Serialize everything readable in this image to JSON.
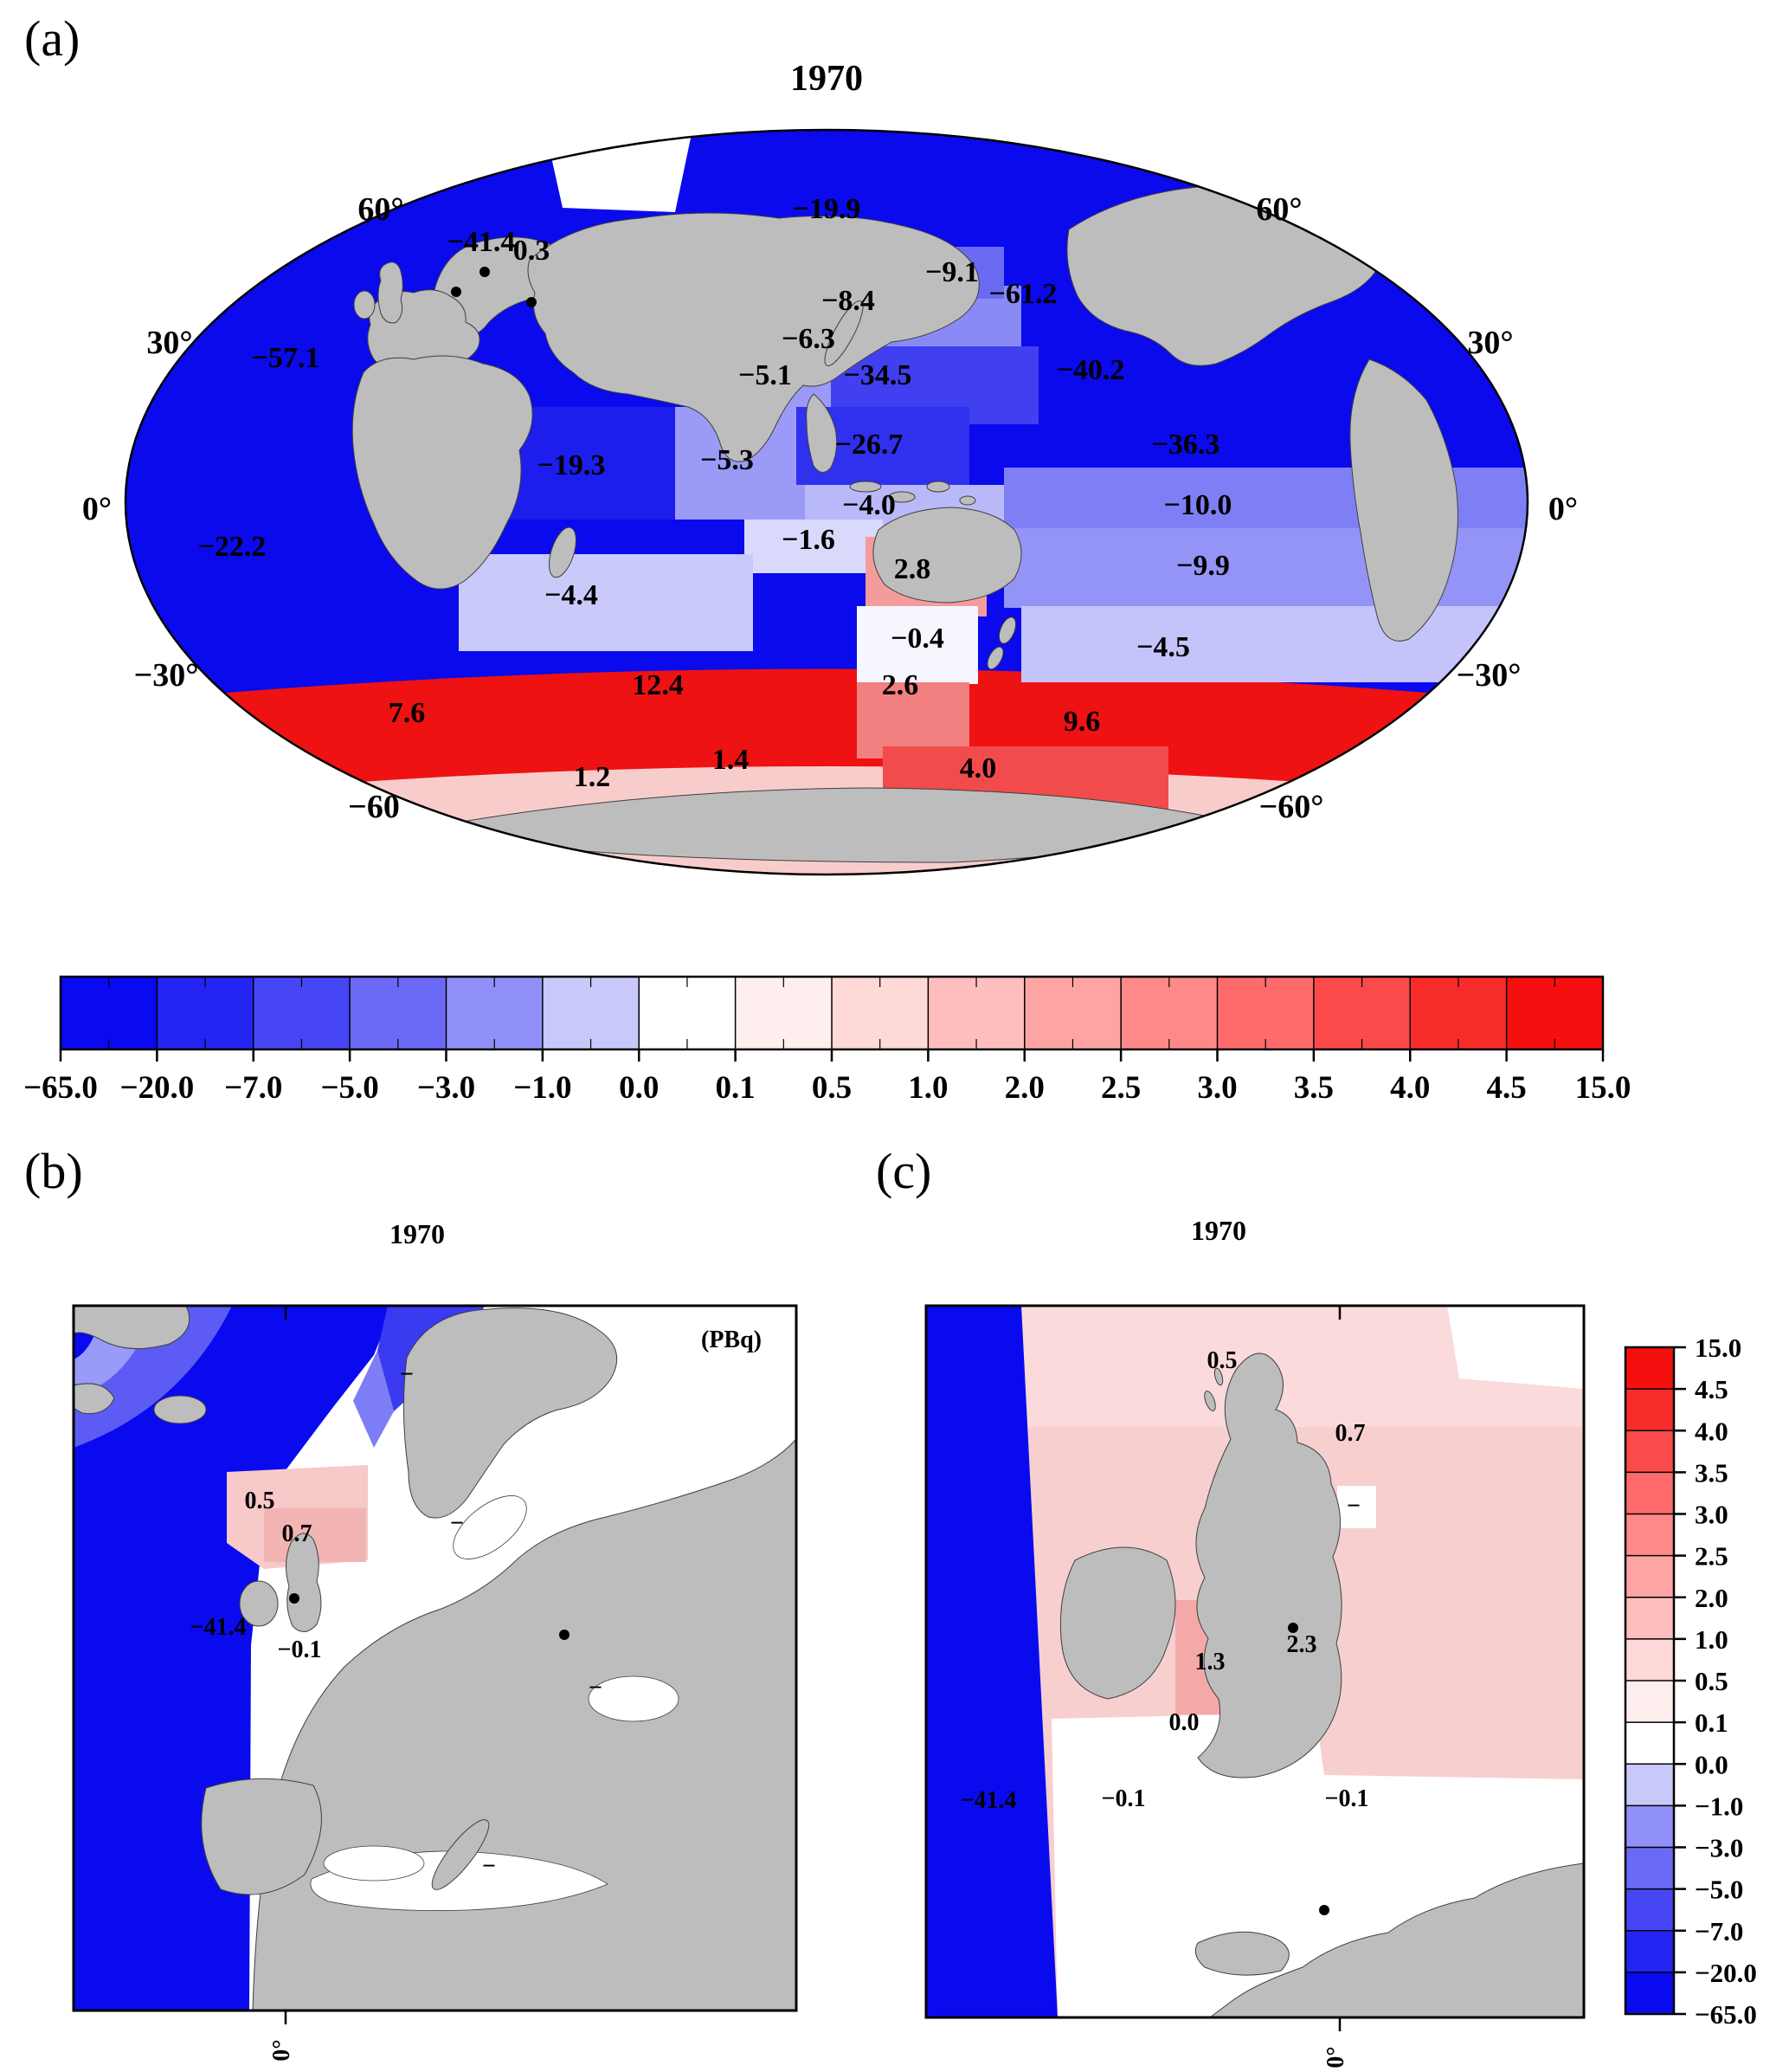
{
  "colors": {
    "land": "#bdbdbd",
    "deep_blue": "#0a0aec",
    "max_red": "#f50f0f",
    "scale": [
      "#0a0af0",
      "#2424f2",
      "#4646f4",
      "#6a6af6",
      "#9090f8",
      "#c8c8fb",
      "#ffffff",
      "#ffeeee",
      "#ffd8d8",
      "#ffbebe",
      "#ffa4a4",
      "#ff8989",
      "#ff6b6b",
      "#fb4a4a",
      "#f82b2b",
      "#f50f0f"
    ]
  },
  "panel_a": {
    "label": "(a)",
    "title": "1970",
    "lat_left": [
      "60°",
      "30°",
      "0°",
      "−30°",
      "−60"
    ],
    "lat_right": [
      "60°",
      "30°",
      "0°",
      "−30°",
      "−60°"
    ],
    "values": [
      "−19.9",
      "−41.4",
      "0.3",
      "−9.1",
      "−61.2",
      "−8.4",
      "−6.3",
      "−57.1",
      "−5.1",
      "−34.5",
      "−40.2",
      "−19.3",
      "−5.3",
      "−26.7",
      "−36.3",
      "−4.0",
      "−10.0",
      "−22.2",
      "−1.6",
      "2.8",
      "−9.9",
      "−4.4",
      "−0.4",
      "−4.5",
      "7.6",
      "12.4",
      "2.6",
      "9.6",
      "1.2",
      "1.4",
      "4.0"
    ]
  },
  "colorbar_horizontal": {
    "ticks": [
      "−65.0",
      "−20.0",
      "−7.0",
      "−5.0",
      "−3.0",
      "−1.0",
      "0.0",
      "0.1",
      "0.5",
      "1.0",
      "2.0",
      "2.5",
      "3.0",
      "3.5",
      "4.0",
      "4.5",
      "15.0"
    ]
  },
  "panel_b": {
    "label": "(b)",
    "title": "1970",
    "unit": "(PBq)",
    "values": [
      "−",
      "−",
      "0.5",
      "0.7",
      "−41.4",
      "−0.1",
      "−",
      "−"
    ],
    "x_tick": "0°"
  },
  "panel_c": {
    "label": "(c)",
    "title": "1970",
    "values": [
      "0.5",
      "0.7",
      "−",
      "2.3",
      "1.3",
      "0.0",
      "−0.1",
      "−41.4",
      "−0.1"
    ],
    "x_tick": "0°"
  },
  "colorbar_vertical": {
    "ticks": [
      "15.0",
      "4.5",
      "4.0",
      "3.5",
      "3.0",
      "2.5",
      "2.0",
      "1.0",
      "0.5",
      "0.1",
      "0.0",
      "−1.0",
      "−3.0",
      "−5.0",
      "−7.0",
      "−20.0",
      "−65.0"
    ]
  }
}
